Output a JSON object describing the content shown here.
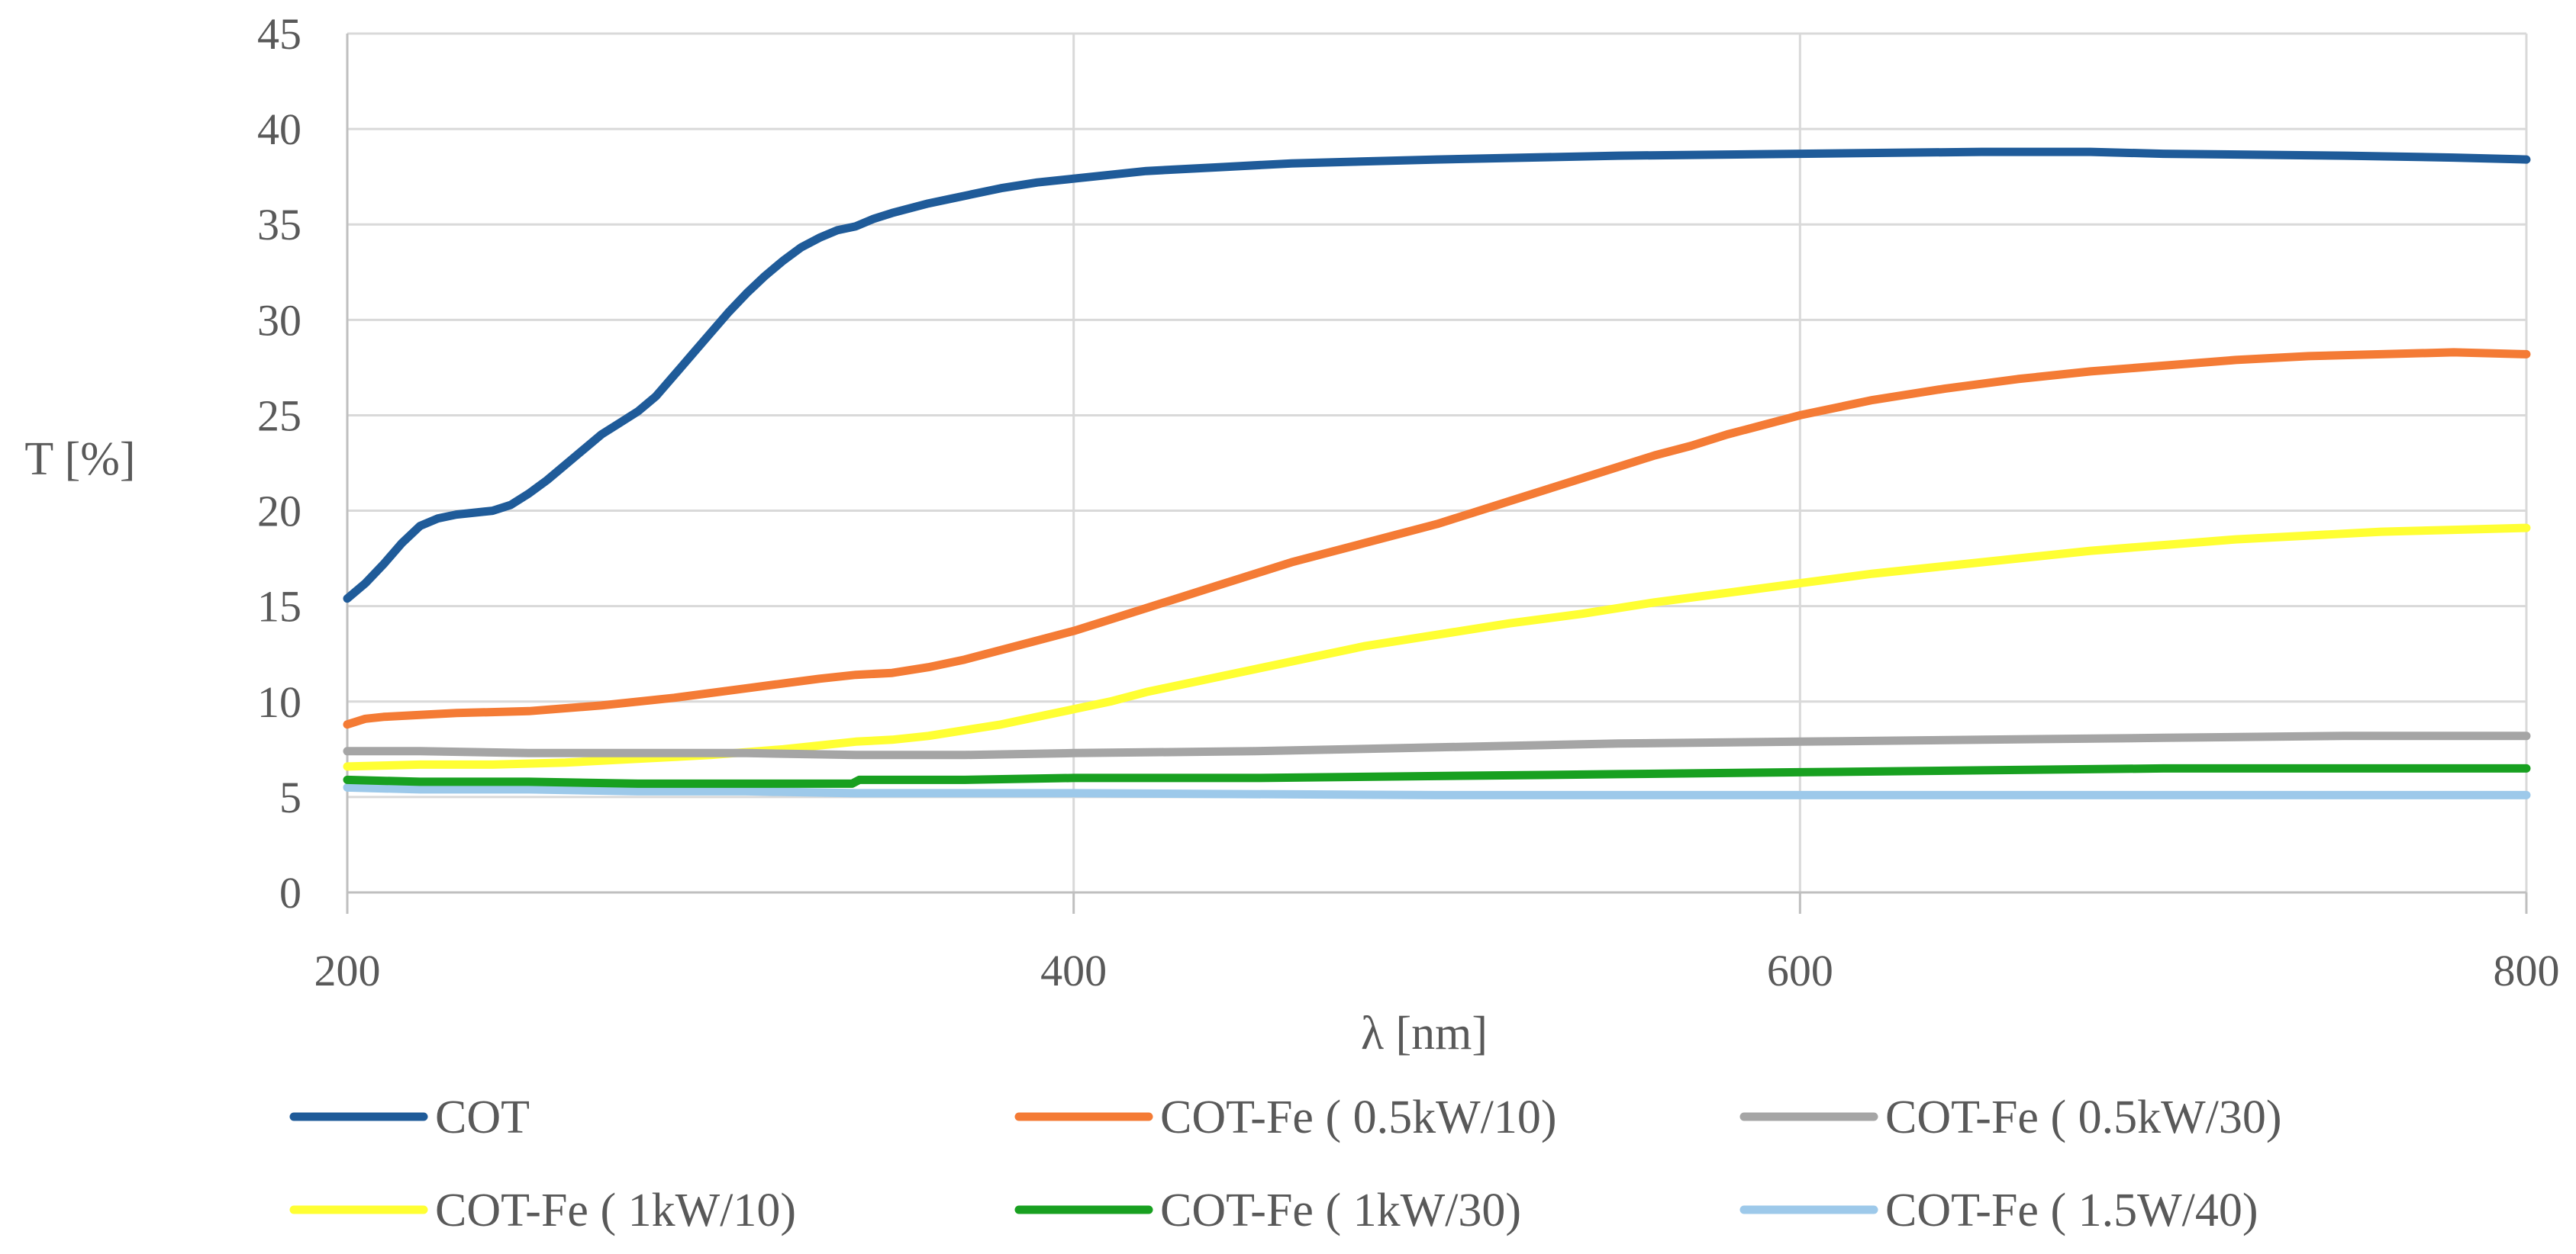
{
  "chart_data": {
    "type": "line",
    "title": "",
    "xlabel": "λ [nm]",
    "ylabel": "T [%]",
    "xlim": [
      200,
      800
    ],
    "ylim": [
      0,
      45
    ],
    "x_ticks": [
      200,
      400,
      600,
      800
    ],
    "y_ticks": [
      0,
      5,
      10,
      15,
      20,
      25,
      30,
      35,
      40,
      45
    ],
    "x_tick_labels": [
      "200",
      "400",
      "600",
      "800"
    ],
    "y_tick_labels": [
      "0",
      "5",
      "10",
      "15",
      "20",
      "25",
      "30",
      "35",
      "40",
      "45"
    ],
    "grid": true,
    "legend_position": "bottom",
    "series": [
      {
        "name": "COT",
        "color": "#1f5b99",
        "points": [
          [
            200,
            15.4
          ],
          [
            205,
            16.2
          ],
          [
            210,
            17.2
          ],
          [
            215,
            18.3
          ],
          [
            220,
            19.2
          ],
          [
            225,
            19.6
          ],
          [
            230,
            19.8
          ],
          [
            235,
            19.9
          ],
          [
            240,
            20.0
          ],
          [
            245,
            20.3
          ],
          [
            250,
            20.9
          ],
          [
            255,
            21.6
          ],
          [
            260,
            22.4
          ],
          [
            265,
            23.2
          ],
          [
            270,
            24.0
          ],
          [
            275,
            24.6
          ],
          [
            280,
            25.2
          ],
          [
            285,
            26.0
          ],
          [
            290,
            27.1
          ],
          [
            295,
            28.2
          ],
          [
            300,
            29.3
          ],
          [
            305,
            30.4
          ],
          [
            310,
            31.4
          ],
          [
            315,
            32.3
          ],
          [
            320,
            33.1
          ],
          [
            325,
            33.8
          ],
          [
            330,
            34.3
          ],
          [
            335,
            34.7
          ],
          [
            340,
            34.9
          ],
          [
            345,
            35.3
          ],
          [
            350,
            35.6
          ],
          [
            360,
            36.1
          ],
          [
            370,
            36.5
          ],
          [
            380,
            36.9
          ],
          [
            390,
            37.2
          ],
          [
            400,
            37.4
          ],
          [
            410,
            37.6
          ],
          [
            420,
            37.8
          ],
          [
            440,
            38.0
          ],
          [
            460,
            38.2
          ],
          [
            480,
            38.3
          ],
          [
            500,
            38.4
          ],
          [
            550,
            38.6
          ],
          [
            600,
            38.7
          ],
          [
            650,
            38.8
          ],
          [
            680,
            38.8
          ],
          [
            700,
            38.7
          ],
          [
            750,
            38.6
          ],
          [
            780,
            38.5
          ],
          [
            800,
            38.4
          ]
        ]
      },
      {
        "name": "COT-Fe ( 0.5kW/10)",
        "color": "#f47b35",
        "points": [
          [
            200,
            8.8
          ],
          [
            205,
            9.1
          ],
          [
            210,
            9.2
          ],
          [
            220,
            9.3
          ],
          [
            230,
            9.4
          ],
          [
            250,
            9.5
          ],
          [
            270,
            9.8
          ],
          [
            290,
            10.2
          ],
          [
            310,
            10.7
          ],
          [
            330,
            11.2
          ],
          [
            340,
            11.4
          ],
          [
            350,
            11.5
          ],
          [
            360,
            11.8
          ],
          [
            370,
            12.2
          ],
          [
            380,
            12.7
          ],
          [
            390,
            13.2
          ],
          [
            400,
            13.7
          ],
          [
            410,
            14.3
          ],
          [
            420,
            14.9
          ],
          [
            430,
            15.5
          ],
          [
            440,
            16.1
          ],
          [
            450,
            16.7
          ],
          [
            460,
            17.3
          ],
          [
            470,
            17.8
          ],
          [
            480,
            18.3
          ],
          [
            490,
            18.8
          ],
          [
            500,
            19.3
          ],
          [
            510,
            19.9
          ],
          [
            520,
            20.5
          ],
          [
            530,
            21.1
          ],
          [
            540,
            21.7
          ],
          [
            550,
            22.3
          ],
          [
            560,
            22.9
          ],
          [
            570,
            23.4
          ],
          [
            580,
            24.0
          ],
          [
            590,
            24.5
          ],
          [
            600,
            25.0
          ],
          [
            620,
            25.8
          ],
          [
            640,
            26.4
          ],
          [
            660,
            26.9
          ],
          [
            680,
            27.3
          ],
          [
            700,
            27.6
          ],
          [
            720,
            27.9
          ],
          [
            740,
            28.1
          ],
          [
            760,
            28.2
          ],
          [
            780,
            28.3
          ],
          [
            800,
            28.2
          ]
        ]
      },
      {
        "name": "COT-Fe ( 0.5kW/30)",
        "color": "#a5a5a5",
        "points": [
          [
            200,
            7.4
          ],
          [
            220,
            7.4
          ],
          [
            250,
            7.3
          ],
          [
            280,
            7.3
          ],
          [
            310,
            7.3
          ],
          [
            340,
            7.2
          ],
          [
            370,
            7.2
          ],
          [
            400,
            7.3
          ],
          [
            450,
            7.4
          ],
          [
            500,
            7.6
          ],
          [
            550,
            7.8
          ],
          [
            600,
            7.9
          ],
          [
            650,
            8.0
          ],
          [
            700,
            8.1
          ],
          [
            750,
            8.2
          ],
          [
            800,
            8.2
          ]
        ]
      },
      {
        "name": "COT-Fe ( 1kW/10)",
        "color": "#ffff33",
        "points": [
          [
            200,
            6.6
          ],
          [
            220,
            6.7
          ],
          [
            240,
            6.7
          ],
          [
            260,
            6.8
          ],
          [
            280,
            7.0
          ],
          [
            300,
            7.2
          ],
          [
            320,
            7.5
          ],
          [
            340,
            7.9
          ],
          [
            350,
            8.0
          ],
          [
            360,
            8.2
          ],
          [
            370,
            8.5
          ],
          [
            380,
            8.8
          ],
          [
            390,
            9.2
          ],
          [
            400,
            9.6
          ],
          [
            410,
            10.0
          ],
          [
            420,
            10.5
          ],
          [
            430,
            10.9
          ],
          [
            440,
            11.3
          ],
          [
            450,
            11.7
          ],
          [
            460,
            12.1
          ],
          [
            470,
            12.5
          ],
          [
            480,
            12.9
          ],
          [
            500,
            13.5
          ],
          [
            520,
            14.1
          ],
          [
            540,
            14.6
          ],
          [
            560,
            15.2
          ],
          [
            580,
            15.7
          ],
          [
            600,
            16.2
          ],
          [
            620,
            16.7
          ],
          [
            640,
            17.1
          ],
          [
            660,
            17.5
          ],
          [
            680,
            17.9
          ],
          [
            700,
            18.2
          ],
          [
            720,
            18.5
          ],
          [
            740,
            18.7
          ],
          [
            760,
            18.9
          ],
          [
            780,
            19.0
          ],
          [
            800,
            19.1
          ]
        ]
      },
      {
        "name": "COT-Fe ( 1kW/30)",
        "color": "#18a020",
        "points": [
          [
            200,
            5.9
          ],
          [
            220,
            5.8
          ],
          [
            250,
            5.8
          ],
          [
            280,
            5.7
          ],
          [
            310,
            5.7
          ],
          [
            339,
            5.7
          ],
          [
            341,
            5.9
          ],
          [
            370,
            5.9
          ],
          [
            400,
            6.0
          ],
          [
            450,
            6.0
          ],
          [
            500,
            6.1
          ],
          [
            550,
            6.2
          ],
          [
            600,
            6.3
          ],
          [
            650,
            6.4
          ],
          [
            700,
            6.5
          ],
          [
            750,
            6.5
          ],
          [
            800,
            6.5
          ]
        ]
      },
      {
        "name": "COT-Fe ( 1.5W/40)",
        "color": "#9dc9ea",
        "points": [
          [
            200,
            5.5
          ],
          [
            220,
            5.4
          ],
          [
            250,
            5.4
          ],
          [
            280,
            5.3
          ],
          [
            310,
            5.3
          ],
          [
            340,
            5.2
          ],
          [
            400,
            5.2
          ],
          [
            500,
            5.1
          ],
          [
            600,
            5.1
          ],
          [
            700,
            5.1
          ],
          [
            800,
            5.1
          ]
        ]
      }
    ]
  }
}
